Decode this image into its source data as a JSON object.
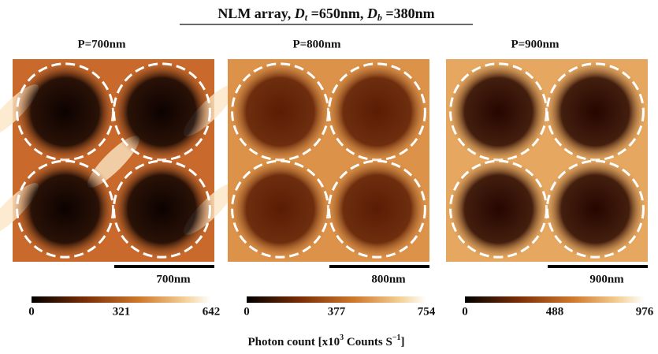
{
  "title": {
    "prefix": "NLM array,",
    "dt_symbol": "D",
    "dt_sub": "t",
    "dt_value": "=650nm,",
    "db_symbol": "D",
    "db_sub": "b",
    "db_value": "=380nm"
  },
  "panels": [
    {
      "label": "P=700nm",
      "scale_bar": "700nm",
      "colorbar_ticks": [
        0,
        321,
        642
      ],
      "background": "#c96a2c",
      "spot": "#0d0200"
    },
    {
      "label": "P=800nm",
      "scale_bar": "800nm",
      "colorbar_ticks": [
        0,
        377,
        754
      ],
      "background": "#dc9248",
      "spot": "#5a1c04"
    },
    {
      "label": "P=900nm",
      "scale_bar": "900nm",
      "colorbar_ticks": [
        0,
        488,
        976
      ],
      "background": "#e6a860",
      "spot": "#260600"
    }
  ],
  "axis_label": {
    "text": "Photon count [x10",
    "exp": "3",
    "unit": " Counts S",
    "unit_exp": "−1",
    "close": "]"
  }
}
